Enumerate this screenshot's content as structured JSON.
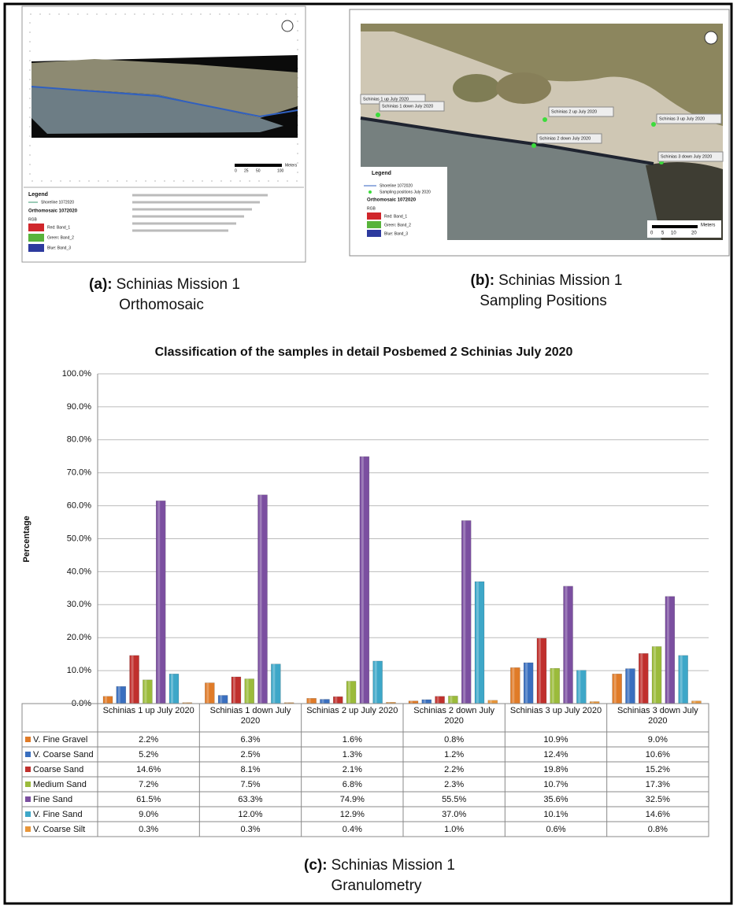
{
  "panels": [
    {
      "label": "(a):",
      "caption_lines": [
        "Schinias Mission 1",
        "Orthomosaic"
      ],
      "legend_title": "Legend",
      "shoreline": "Shoreline 1072020",
      "layer": "Orthomosaic 1072020",
      "rgb": "RGB",
      "bands": [
        "Red:  Band_1",
        "Green:  Band_2",
        "Blue:  Band_3"
      ],
      "scale_unit": "Meters",
      "scale_ticks": [
        "0",
        "25",
        "50",
        "100"
      ]
    },
    {
      "label": "(b):",
      "caption_lines": [
        "Schinias Mission 1",
        "Sampling Positions"
      ],
      "sites": [
        "Schinias 1 up July 2020",
        "Schinias 1 down July 2020",
        "Schinias 2 up July 2020",
        "Schinias 2 down July 2020",
        "Schinias 3 up July 2020",
        "Schinias 3 down July 2020"
      ],
      "legend_title": "Legend",
      "shoreline": "Shoreline 1072020",
      "positions": "Sampling positions July 2020",
      "layer": "Orthomosaic 1072020",
      "rgb": "RGB",
      "bands": [
        "Red:  Band_1",
        "Green:  Band_2",
        "Blue:  Band_3"
      ],
      "scale_unit": "Meters",
      "scale_ticks": [
        "0",
        "5",
        "10",
        "20"
      ]
    }
  ],
  "chart_caption": {
    "label": "(c):",
    "lines": [
      "Schinias Mission 1",
      "Granulometry"
    ]
  },
  "chart_data": {
    "type": "bar",
    "title": "Classification of the samples in detail Posbemed 2 Schinias July 2020",
    "y_label": "Percentage",
    "categories": [
      "Schinias 1 up July 2020",
      "Schinias 1 down July 2020",
      "Schinias 2 up July 2020",
      "Schinias 2 down July 2020",
      "Schinias 3 up July 2020",
      "Schinias 3 down July 2020"
    ],
    "series": [
      {
        "name": "V. Fine Gravel",
        "color": "#e07b28",
        "values": [
          2.2,
          6.3,
          1.6,
          0.8,
          10.9,
          9.0
        ],
        "value_labels": [
          "2.2%",
          "6.3%",
          "1.6%",
          "0.8%",
          "10.9%",
          "9.0%"
        ]
      },
      {
        "name": "V. Coarse Sand",
        "color": "#3a6fbf",
        "values": [
          5.2,
          2.5,
          1.3,
          1.2,
          12.4,
          10.6
        ],
        "value_labels": [
          "5.2%",
          "2.5%",
          "1.3%",
          "1.2%",
          "12.4%",
          "10.6%"
        ]
      },
      {
        "name": "Coarse Sand",
        "color": "#c0302d",
        "values": [
          14.6,
          8.1,
          2.1,
          2.2,
          19.8,
          15.2
        ],
        "value_labels": [
          "14.6%",
          "8.1%",
          "2.1%",
          "2.2%",
          "19.8%",
          "15.2%"
        ]
      },
      {
        "name": "Medium Sand",
        "color": "#9bbb3b",
        "values": [
          7.2,
          7.5,
          6.8,
          2.3,
          10.7,
          17.3
        ],
        "value_labels": [
          "7.2%",
          "7.5%",
          "6.8%",
          "2.3%",
          "10.7%",
          "17.3%"
        ]
      },
      {
        "name": "Fine Sand",
        "color": "#7b4fa0",
        "values": [
          61.5,
          63.3,
          74.9,
          55.5,
          35.6,
          32.5
        ],
        "value_labels": [
          "61.5%",
          "63.3%",
          "74.9%",
          "55.5%",
          "35.6%",
          "32.5%"
        ]
      },
      {
        "name": "V. Fine Sand",
        "color": "#3ea7c8",
        "values": [
          9.0,
          12.0,
          12.9,
          37.0,
          10.1,
          14.6
        ],
        "value_labels": [
          "9.0%",
          "12.0%",
          "12.9%",
          "37.0%",
          "10.1%",
          "14.6%"
        ]
      },
      {
        "name": "V. Coarse Silt",
        "color": "#e8963a",
        "values": [
          0.3,
          0.3,
          0.4,
          1.0,
          0.6,
          0.8
        ],
        "value_labels": [
          "0.3%",
          "0.3%",
          "0.4%",
          "1.0%",
          "0.6%",
          "0.8%"
        ]
      }
    ],
    "ylim": [
      0,
      100
    ],
    "yticks": [
      {
        "value": 0,
        "label": "0.0%"
      },
      {
        "value": 10,
        "label": "10.0%"
      },
      {
        "value": 20,
        "label": "20.0%"
      },
      {
        "value": 30,
        "label": "30.0%"
      },
      {
        "value": 40,
        "label": "40.0%"
      },
      {
        "value": 50,
        "label": "50.0%"
      },
      {
        "value": 60,
        "label": "60.0%"
      },
      {
        "value": 70,
        "label": "70.0%"
      },
      {
        "value": 80,
        "label": "80.0%"
      },
      {
        "value": 90,
        "label": "90.0%"
      },
      {
        "value": 100,
        "label": "100.0%"
      }
    ],
    "grid": true
  }
}
